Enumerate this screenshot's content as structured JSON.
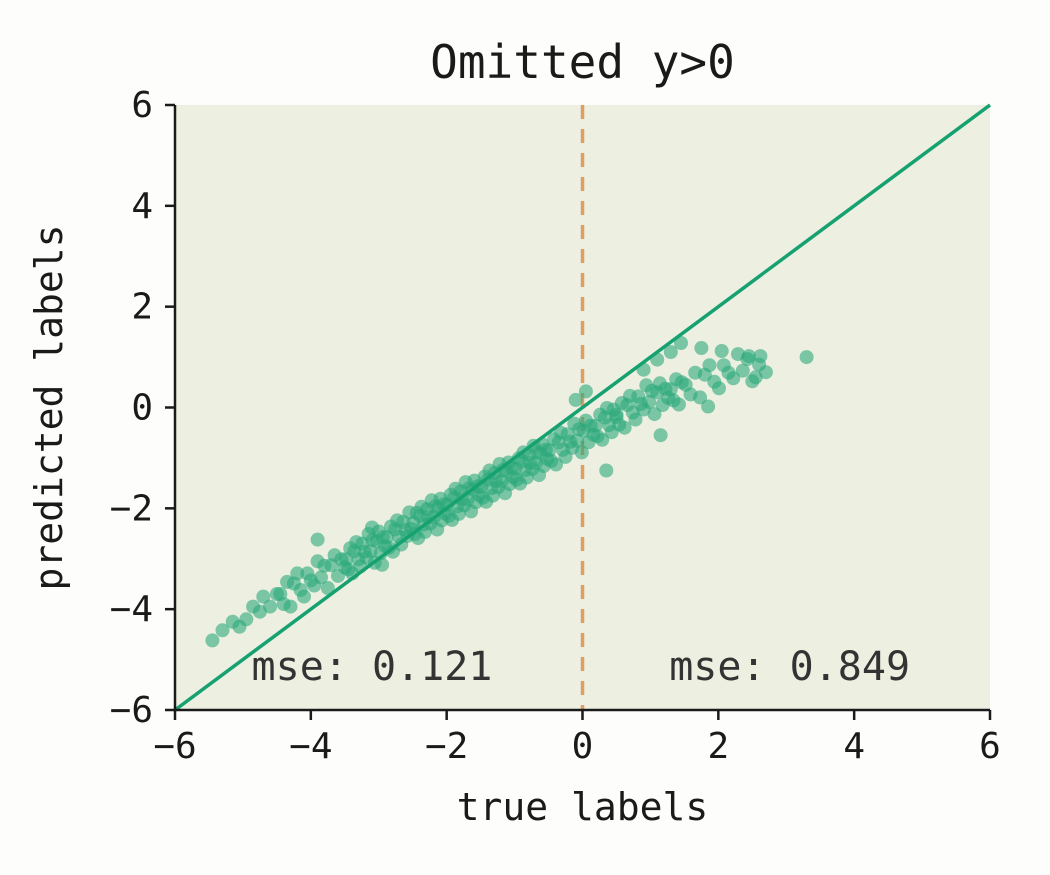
{
  "chart_data": {
    "type": "scatter",
    "title": "Omitted y>0",
    "xlabel": "true labels",
    "ylabel": "predicted labels",
    "xlim": [
      -6,
      6
    ],
    "ylim": [
      -6,
      6
    ],
    "grid": false,
    "legend": "none",
    "plot_bg": "#edefe1",
    "point_color": "#2ba87c",
    "point_opacity": 0.6,
    "identity_line": {
      "name": "y-equals-x",
      "color": "#16a171",
      "from": [
        -6,
        -6
      ],
      "to": [
        6,
        6
      ]
    },
    "vline": {
      "x": 0,
      "color": "#dd9f63",
      "style": "dashed"
    },
    "xticks": [
      {
        "value": -6,
        "label": "−6"
      },
      {
        "value": -4,
        "label": "−4"
      },
      {
        "value": -2,
        "label": "−2"
      },
      {
        "value": 0,
        "label": "0"
      },
      {
        "value": 2,
        "label": "2"
      },
      {
        "value": 4,
        "label": "4"
      },
      {
        "value": 6,
        "label": "6"
      }
    ],
    "yticks": [
      {
        "value": -6,
        "label": "−6"
      },
      {
        "value": -4,
        "label": "−4"
      },
      {
        "value": -2,
        "label": "−2"
      },
      {
        "value": 0,
        "label": "0"
      },
      {
        "value": 2,
        "label": "2"
      },
      {
        "value": 4,
        "label": "4"
      },
      {
        "value": 6,
        "label": "6"
      }
    ],
    "annotations": [
      {
        "text": "mse: 0.121",
        "x": -3.1,
        "y": -5.15,
        "side": "left-of-vline"
      },
      {
        "text": "mse: 0.849",
        "x": 3.05,
        "y": -5.15,
        "side": "right-of-vline"
      }
    ],
    "points": [
      [
        -5.45,
        -4.62
      ],
      [
        -5.3,
        -4.42
      ],
      [
        -5.15,
        -4.25
      ],
      [
        -5.05,
        -4.35
      ],
      [
        -4.95,
        -4.2
      ],
      [
        -4.85,
        -3.95
      ],
      [
        -4.75,
        -4.05
      ],
      [
        -4.7,
        -3.75
      ],
      [
        -4.6,
        -3.95
      ],
      [
        -4.5,
        -3.7
      ],
      [
        -4.45,
        -3.7
      ],
      [
        -4.4,
        -3.9
      ],
      [
        -4.35,
        -3.46
      ],
      [
        -4.3,
        -3.95
      ],
      [
        -4.25,
        -3.49
      ],
      [
        -4.2,
        -3.29
      ],
      [
        -4.15,
        -3.62
      ],
      [
        -4.1,
        -3.75
      ],
      [
        -4.05,
        -3.29
      ],
      [
        -4.0,
        -3.43
      ],
      [
        -3.95,
        -3.53
      ],
      [
        -3.9,
        -3.05
      ],
      [
        -3.85,
        -3.37
      ],
      [
        -3.8,
        -3.14
      ],
      [
        -3.75,
        -3.58
      ],
      [
        -3.7,
        -3.13
      ],
      [
        -3.65,
        -2.93
      ],
      [
        -3.6,
        -3.34
      ],
      [
        -3.55,
        -3.01
      ],
      [
        -3.5,
        -3.17
      ],
      [
        -3.9,
        -2.62
      ],
      [
        -3.48,
        -3.01
      ],
      [
        -3.45,
        -3.21
      ],
      [
        -3.42,
        -2.79
      ],
      [
        -3.39,
        -3.29
      ],
      [
        -3.36,
        -2.85
      ],
      [
        -3.33,
        -2.67
      ],
      [
        -3.3,
        -3.01
      ],
      [
        -3.27,
        -3.15
      ],
      [
        -3.24,
        -2.7
      ],
      [
        -3.21,
        -2.86
      ],
      [
        -3.18,
        -2.98
      ],
      [
        -3.15,
        -2.51
      ],
      [
        -3.12,
        -2.85
      ],
      [
        -3.09,
        -2.63
      ],
      [
        -3.06,
        -3.08
      ],
      [
        -3.03,
        -2.65
      ],
      [
        -3.0,
        -2.46
      ],
      [
        -2.97,
        -2.89
      ],
      [
        -2.94,
        -2.57
      ],
      [
        -2.91,
        -2.75
      ],
      [
        -2.88,
        -2.57
      ],
      [
        -2.85,
        -2.78
      ],
      [
        -2.82,
        -2.36
      ],
      [
        -2.79,
        -2.86
      ],
      [
        -2.76,
        -2.42
      ],
      [
        -2.73,
        -2.24
      ],
      [
        -2.7,
        -2.57
      ],
      [
        -2.67,
        -2.72
      ],
      [
        -2.64,
        -2.27
      ],
      [
        -2.61,
        -2.43
      ],
      [
        -2.58,
        -2.55
      ],
      [
        -2.55,
        -2.08
      ],
      [
        -2.52,
        -2.41
      ],
      [
        -3.1,
        -2.38
      ],
      [
        -2.95,
        -3.12
      ],
      [
        -2.49,
        -2.29
      ],
      [
        -2.47,
        -2.51
      ],
      [
        -2.44,
        -2.09
      ],
      [
        -2.42,
        -2.59
      ],
      [
        -2.39,
        -2.15
      ],
      [
        -2.37,
        -1.97
      ],
      [
        -2.34,
        -2.32
      ],
      [
        -2.32,
        -2.47
      ],
      [
        -2.29,
        -2.02
      ],
      [
        -2.27,
        -2.18
      ],
      [
        -2.24,
        -2.3
      ],
      [
        -2.22,
        -1.84
      ],
      [
        -2.19,
        -2.18
      ],
      [
        -2.17,
        -1.96
      ],
      [
        -2.14,
        -2.42
      ],
      [
        -2.12,
        -1.99
      ],
      [
        -2.09,
        -1.81
      ],
      [
        -2.07,
        -2.24
      ],
      [
        -2.04,
        -1.92
      ],
      [
        -2.02,
        -2.1
      ],
      [
        -1.99,
        -1.93
      ],
      [
        -1.97,
        -2.15
      ],
      [
        -1.94,
        -1.73
      ],
      [
        -1.92,
        -2.23
      ],
      [
        -1.89,
        -1.79
      ],
      [
        -1.87,
        -1.61
      ],
      [
        -1.84,
        -1.96
      ],
      [
        -1.82,
        -2.11
      ],
      [
        -1.79,
        -1.66
      ],
      [
        -1.77,
        -1.82
      ],
      [
        -1.74,
        -1.94
      ],
      [
        -1.72,
        -1.48
      ],
      [
        -1.69,
        -1.82
      ],
      [
        -1.67,
        -1.6
      ],
      [
        -1.64,
        -2.06
      ],
      [
        -1.62,
        -1.63
      ],
      [
        -1.59,
        -1.45
      ],
      [
        -1.57,
        -1.88
      ],
      [
        -1.54,
        -1.56
      ],
      [
        -1.52,
        -1.74
      ],
      [
        -1.49,
        -1.57
      ],
      [
        -1.47,
        -1.79
      ],
      [
        -1.44,
        -1.37
      ],
      [
        -1.42,
        -1.87
      ],
      [
        -1.39,
        -1.43
      ],
      [
        -1.37,
        -1.25
      ],
      [
        -1.34,
        -1.6
      ],
      [
        -1.32,
        -1.75
      ],
      [
        -1.29,
        -1.3
      ],
      [
        -1.27,
        -1.46
      ],
      [
        -1.24,
        -1.58
      ],
      [
        -1.22,
        -1.12
      ],
      [
        -1.19,
        -1.46
      ],
      [
        -1.17,
        -1.24
      ],
      [
        -1.14,
        -1.7
      ],
      [
        -1.12,
        -1.27
      ],
      [
        -1.09,
        -1.09
      ],
      [
        -1.07,
        -1.52
      ],
      [
        -1.04,
        -1.2
      ],
      [
        -1.02,
        -1.38
      ],
      [
        -0.99,
        -1.21
      ],
      [
        -0.97,
        -1.43
      ],
      [
        -0.94,
        -1.01
      ],
      [
        -0.92,
        -1.51
      ],
      [
        -0.89,
        -1.07
      ],
      [
        -0.87,
        -0.89
      ],
      [
        -0.84,
        -1.24
      ],
      [
        -0.82,
        -1.39
      ],
      [
        -0.79,
        -0.94
      ],
      [
        -0.77,
        -1.1
      ],
      [
        -0.74,
        -1.22
      ],
      [
        -0.72,
        -0.76
      ],
      [
        -0.69,
        -1.1
      ],
      [
        -0.67,
        -0.88
      ],
      [
        -0.64,
        -1.34
      ],
      [
        -0.62,
        -0.91
      ],
      [
        -0.59,
        -0.73
      ],
      [
        -0.57,
        -1.16
      ],
      [
        -0.54,
        -0.84
      ],
      [
        -0.52,
        -1.02
      ],
      [
        -0.49,
        -0.85
      ],
      [
        -0.46,
        -1.06
      ],
      [
        -0.42,
        -0.63
      ],
      [
        -0.39,
        -1.13
      ],
      [
        -0.35,
        -0.69
      ],
      [
        -0.32,
        -0.5
      ],
      [
        -0.29,
        -0.84
      ],
      [
        -0.25,
        -0.98
      ],
      [
        -0.22,
        -0.53
      ],
      [
        -0.18,
        -0.68
      ],
      [
        -0.15,
        -0.8
      ],
      [
        -0.12,
        -0.32
      ],
      [
        -0.08,
        -0.66
      ],
      [
        -0.05,
        -0.43
      ],
      [
        -0.01,
        -0.89
      ],
      [
        0.02,
        -0.46
      ],
      [
        0.05,
        -0.26
      ],
      [
        0.09,
        -0.69
      ],
      [
        0.12,
        -0.36
      ],
      [
        0.16,
        -0.54
      ],
      [
        0.19,
        -0.36
      ],
      [
        0.22,
        -0.57
      ],
      [
        0.26,
        -0.14
      ],
      [
        0.29,
        -0.64
      ],
      [
        0.33,
        -0.2
      ],
      [
        0.36,
        -0.01
      ],
      [
        0.39,
        -0.35
      ],
      [
        0.43,
        -0.49
      ],
      [
        0.46,
        -0.04
      ],
      [
        0.5,
        -0.19
      ],
      [
        0.05,
        0.32
      ],
      [
        -0.1,
        0.15
      ],
      [
        0.35,
        -1.25
      ],
      [
        0.5,
        -0.14
      ],
      [
        0.54,
        -0.34
      ],
      [
        0.58,
        0.09
      ],
      [
        0.62,
        -0.4
      ],
      [
        0.66,
        0.05
      ],
      [
        0.7,
        0.23
      ],
      [
        0.74,
        -0.1
      ],
      [
        0.78,
        -0.24
      ],
      [
        0.82,
        0.22
      ],
      [
        0.86,
        0.07
      ],
      [
        0.9,
        -0.04
      ],
      [
        0.94,
        0.44
      ],
      [
        0.98,
        0.11
      ],
      [
        1.02,
        0.33
      ],
      [
        1.06,
        -0.13
      ],
      [
        1.1,
        0.3
      ],
      [
        1.14,
        0.48
      ],
      [
        1.18,
        0.05
      ],
      [
        1.22,
        0.37
      ],
      [
        1.26,
        0.19
      ],
      [
        1.3,
        0.36
      ],
      [
        1.34,
        0.14
      ],
      [
        1.38,
        0.56
      ],
      [
        1.42,
        0.06
      ],
      [
        1.46,
        0.5
      ],
      [
        1.1,
        0.95
      ],
      [
        1.3,
        1.1
      ],
      [
        0.9,
        0.75
      ],
      [
        1.45,
        1.28
      ],
      [
        1.15,
        -0.55
      ],
      [
        1.52,
        0.45
      ],
      [
        1.59,
        0.26
      ],
      [
        1.66,
        0.69
      ],
      [
        1.73,
        0.2
      ],
      [
        1.8,
        0.65
      ],
      [
        1.87,
        0.84
      ],
      [
        1.94,
        0.51
      ],
      [
        2.01,
        0.38
      ],
      [
        2.08,
        0.84
      ],
      [
        2.15,
        0.69
      ],
      [
        2.22,
        0.58
      ],
      [
        2.29,
        1.06
      ],
      [
        2.36,
        0.73
      ],
      [
        2.43,
        0.96
      ],
      [
        2.5,
        0.52
      ],
      [
        1.75,
        1.18
      ],
      [
        2.05,
        1.12
      ],
      [
        2.45,
        1.02
      ],
      [
        1.85,
        0.02
      ],
      [
        2.6,
        0.85
      ],
      [
        2.7,
        0.7
      ],
      [
        2.62,
        1.02
      ],
      [
        2.55,
        0.6
      ],
      [
        3.3,
        1.0
      ]
    ]
  }
}
